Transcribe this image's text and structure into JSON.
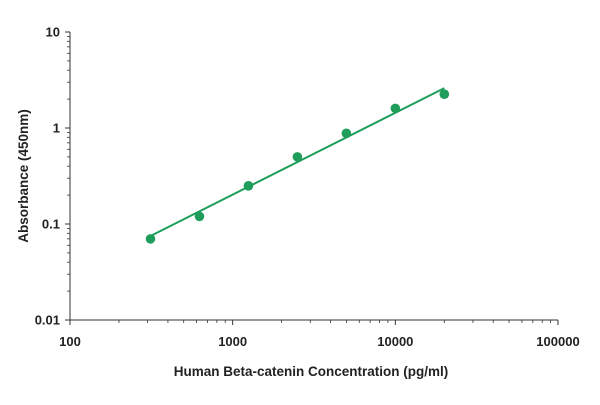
{
  "chart_data": {
    "type": "scatter",
    "title": "",
    "xlabel": "Human Beta-catenin Concentration (pg/ml)",
    "ylabel": "Absorbance (450nm)",
    "xscale": "log",
    "yscale": "log",
    "xlim": [
      100,
      100000
    ],
    "ylim": [
      0.01,
      10
    ],
    "xticks": [
      "100",
      "1000",
      "10000",
      "100000"
    ],
    "yticks": [
      "0.01",
      "0.1",
      "1",
      "10"
    ],
    "grid": false,
    "legend": "none",
    "points": {
      "x": [
        312.5,
        625,
        1250,
        2500,
        5000,
        10000,
        20000
      ],
      "y": [
        0.07,
        0.12,
        0.25,
        0.5,
        0.88,
        1.6,
        2.25
      ]
    },
    "fit_line": {
      "x": [
        312.5,
        20000
      ],
      "y": [
        0.075,
        2.6
      ]
    },
    "colors": {
      "points": "#1e9e5a",
      "fit_line": "#1e9e5a",
      "axis": "#333333"
    }
  }
}
